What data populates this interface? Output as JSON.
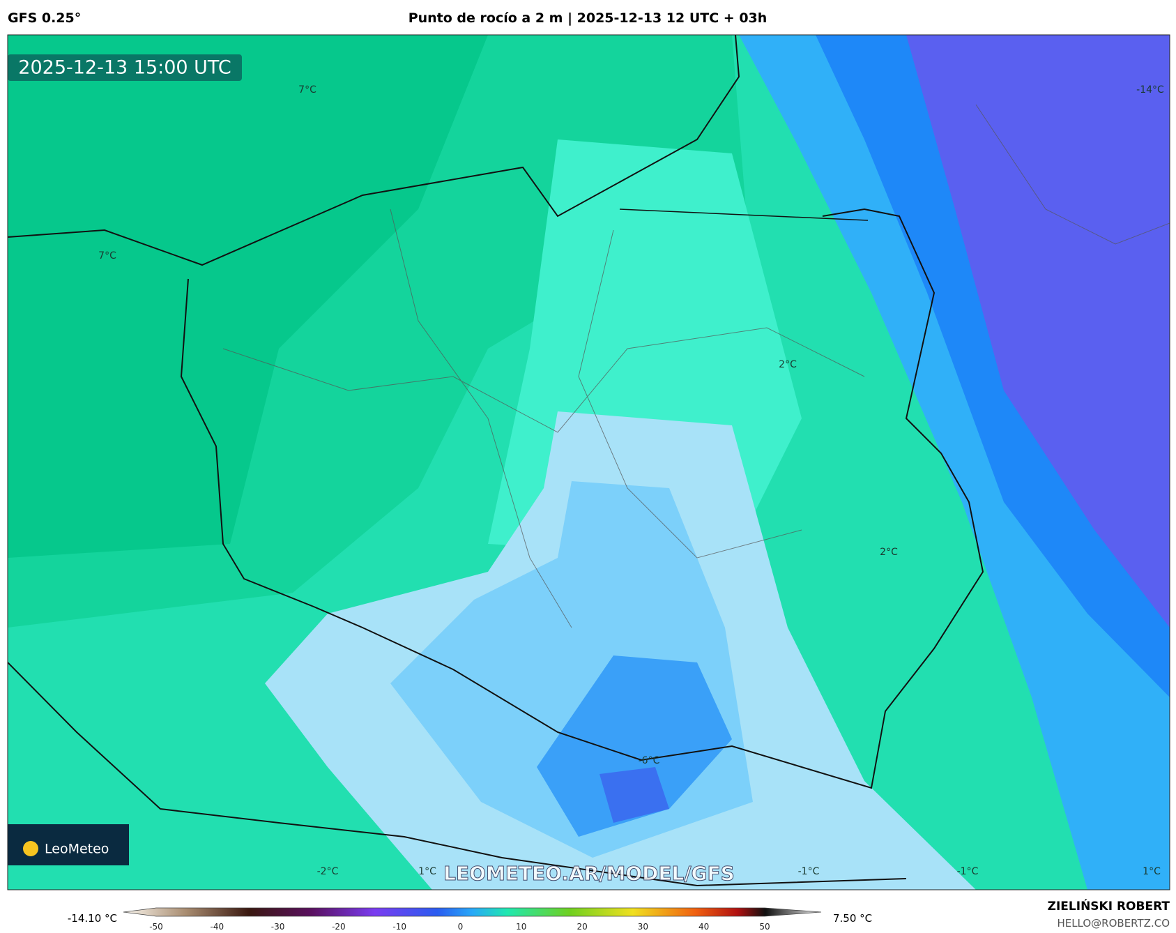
{
  "header": {
    "model": "GFS 0.25°",
    "title": "Punto de rocío a 2 m | 2025-12-13 12 UTC + 03h"
  },
  "map": {
    "valid_time": "2025-12-13 15:00 UTC",
    "watermark": "LEOMETEO.AR/MODEL/GFS",
    "logo": "LeoMeteo",
    "contour_labels": [
      "7°C",
      "7°C",
      "-14°C",
      "2°C",
      "2°C",
      "-6°C",
      "-2°C",
      "1°C",
      "-1°C",
      "-1°C",
      "1°C"
    ]
  },
  "colorbar": {
    "min_label": "-14.10 °C",
    "max_label": "7.50 °C",
    "ticks": [
      -50,
      -40,
      -30,
      -20,
      -10,
      0,
      10,
      20,
      30,
      40,
      50
    ]
  },
  "footer": {
    "author": "ZIELIŃSKI ROBERT",
    "email": "HELLO@ROBERTZ.CO"
  }
}
